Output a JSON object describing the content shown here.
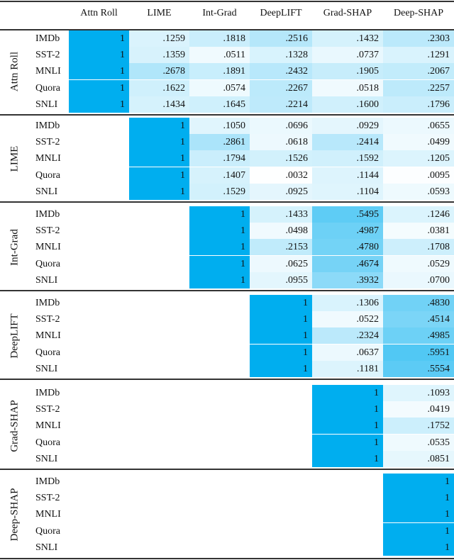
{
  "columns": [
    "Attn Roll",
    "LIME",
    "Int-Grad",
    "DeepLIFT",
    "Grad-SHAP",
    "Deep-SHAP"
  ],
  "datasets": [
    "IMDb",
    "SST-2",
    "MNLI",
    "Quora",
    "SNLI"
  ],
  "accent_color": "#00AEEF",
  "groups": [
    {
      "label": "Attn Roll",
      "rows": [
        [
          "1",
          ".1259",
          ".1818",
          ".2516",
          ".1432",
          ".2303"
        ],
        [
          "1",
          ".1359",
          ".0511",
          ".1328",
          ".0737",
          ".1291"
        ],
        [
          "1",
          ".2678",
          ".1891",
          ".2432",
          ".1905",
          ".2067"
        ],
        [
          "1",
          ".1622",
          ".0574",
          ".2267",
          ".0518",
          ".2257"
        ],
        [
          "1",
          ".1434",
          ".1645",
          ".2214",
          ".1600",
          ".1796"
        ]
      ]
    },
    {
      "label": "LIME",
      "rows": [
        [
          "",
          "1",
          ".1050",
          ".0696",
          ".0929",
          ".0655"
        ],
        [
          "",
          "1",
          ".2861",
          ".0618",
          ".2414",
          ".0499"
        ],
        [
          "",
          "1",
          ".1794",
          ".1526",
          ".1592",
          ".1205"
        ],
        [
          "",
          "1",
          ".1407",
          ".0032",
          ".1144",
          ".0095"
        ],
        [
          "",
          "1",
          ".1529",
          ".0925",
          ".1104",
          ".0593"
        ]
      ]
    },
    {
      "label": "Int-Grad",
      "rows": [
        [
          "",
          "",
          "1",
          ".1433",
          ".5495",
          ".1246"
        ],
        [
          "",
          "",
          "1",
          ".0498",
          ".4987",
          ".0381"
        ],
        [
          "",
          "",
          "1",
          ".2153",
          ".4780",
          ".1708"
        ],
        [
          "",
          "",
          "1",
          ".0625",
          ".4674",
          ".0529"
        ],
        [
          "",
          "",
          "1",
          ".0955",
          ".3932",
          ".0700"
        ]
      ]
    },
    {
      "label": "DeepLIFT",
      "rows": [
        [
          "",
          "",
          "",
          "1",
          ".1306",
          ".4830"
        ],
        [
          "",
          "",
          "",
          "1",
          ".0522",
          ".4514"
        ],
        [
          "",
          "",
          "",
          "1",
          ".2324",
          ".4985"
        ],
        [
          "",
          "",
          "",
          "1",
          ".0637",
          ".5951"
        ],
        [
          "",
          "",
          "",
          "1",
          ".1181",
          ".5554"
        ]
      ]
    },
    {
      "label": "Grad-SHAP",
      "rows": [
        [
          "",
          "",
          "",
          "",
          "1",
          ".1093"
        ],
        [
          "",
          "",
          "",
          "",
          "1",
          ".0419"
        ],
        [
          "",
          "",
          "",
          "",
          "1",
          ".1752"
        ],
        [
          "",
          "",
          "",
          "",
          "1",
          ".0535"
        ],
        [
          "",
          "",
          "",
          "",
          "1",
          ".0851"
        ]
      ]
    },
    {
      "label": "Deep-SHAP",
      "rows": [
        [
          "",
          "",
          "",
          "",
          "",
          "1"
        ],
        [
          "",
          "",
          "",
          "",
          "",
          "1"
        ],
        [
          "",
          "",
          "",
          "",
          "",
          "1"
        ],
        [
          "",
          "",
          "",
          "",
          "",
          "1"
        ],
        [
          "",
          "",
          "",
          "",
          "",
          "1"
        ]
      ]
    }
  ]
}
